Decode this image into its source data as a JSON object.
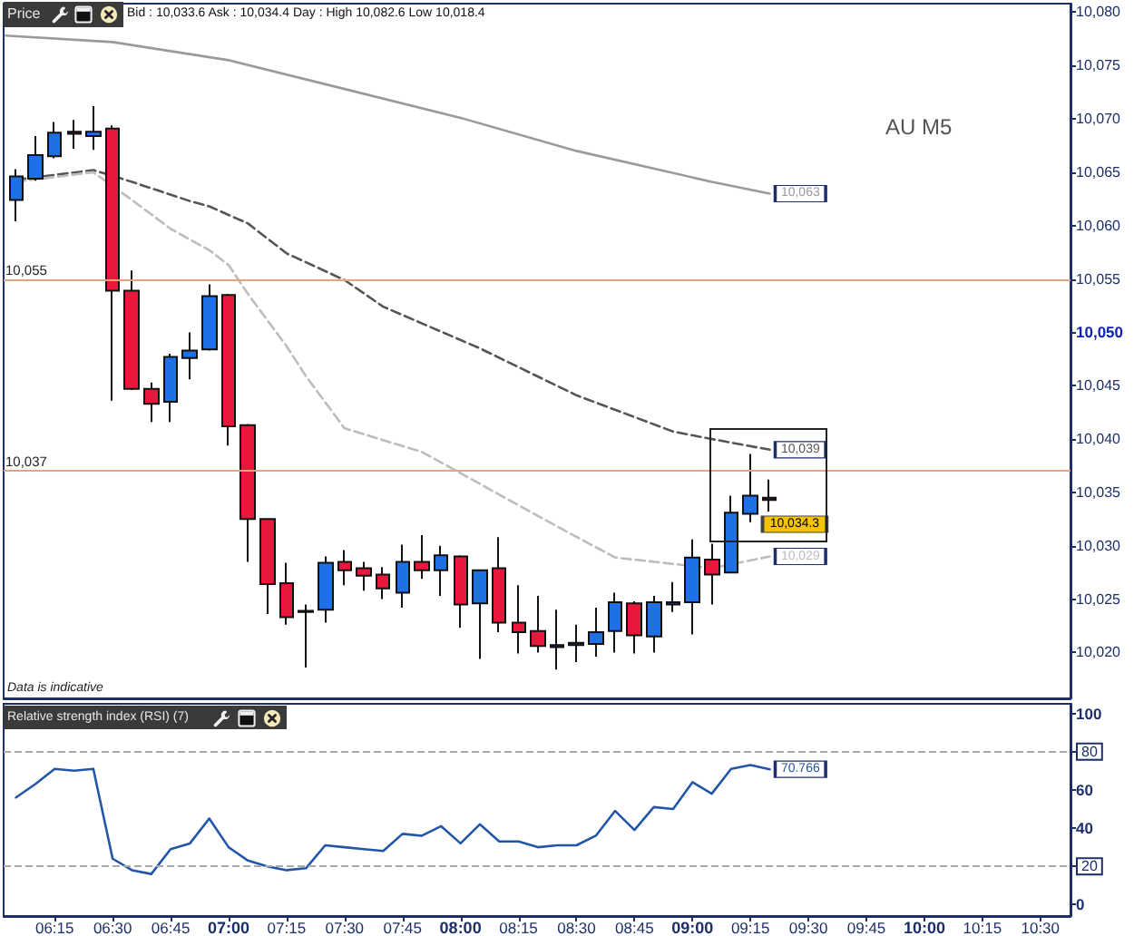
{
  "chart_data": [
    {
      "type": "candlestick",
      "title": "Price",
      "subtitle": "Bid : 10,033.6 Ask : 10,034.4 Day : High 10,082.6 Low 10,018.4",
      "annotations": [
        "AU M5",
        "Data is indicative"
      ],
      "x": [
        6.0833,
        6.1667,
        6.25,
        6.3333,
        6.4167,
        6.5,
        6.5833,
        6.6667,
        6.75,
        6.8333,
        6.9167,
        7,
        7.0833,
        7.1667,
        7.25,
        7.3333,
        7.4167,
        7.5,
        7.5833,
        7.6667,
        7.75,
        7.8333,
        7.9167,
        8,
        8.0833,
        8.1667,
        8.25,
        8.3333,
        8.4167,
        8.5,
        8.5833,
        8.6667,
        8.75,
        8.8333,
        8.9167,
        9,
        9.0833,
        9.1667,
        9.25,
        9.3333
      ],
      "ohlc": [
        [
          10062.4,
          10065.3,
          10060.4,
          10064.6
        ],
        [
          10064.4,
          10068.4,
          10064.2,
          10066.6
        ],
        [
          10066.5,
          10069.7,
          10066.3,
          10068.7
        ],
        [
          10068.8,
          10069.9,
          10067.2,
          10068.6
        ],
        [
          10068.4,
          10071.2,
          10067.1,
          10068.8
        ],
        [
          10069.1,
          10069.4,
          10043.6,
          10053.9
        ],
        [
          10053.9,
          10055.8,
          10044.6,
          10044.7
        ],
        [
          10044.7,
          10045.3,
          10041.6,
          10043.3
        ],
        [
          10043.5,
          10048.0,
          10041.6,
          10047.7
        ],
        [
          10047.6,
          10050.0,
          10045.6,
          10048.3
        ],
        [
          10048.4,
          10054.5,
          10048.3,
          10053.4
        ],
        [
          10053.5,
          10053.6,
          10039.4,
          10041.2
        ],
        [
          10041.3,
          10041.4,
          10028.5,
          10032.5
        ],
        [
          10032.5,
          10032.6,
          10023.6,
          10026.4
        ],
        [
          10026.5,
          10028.4,
          10022.6,
          10023.3
        ],
        [
          10023.8,
          10024.5,
          10018.6,
          10023.9
        ],
        [
          10024.0,
          10029.0,
          10022.8,
          10028.4
        ],
        [
          10028.5,
          10029.6,
          10026.3,
          10027.7
        ],
        [
          10027.9,
          10028.5,
          10025.8,
          10027.2
        ],
        [
          10027.3,
          10028.0,
          10025.0,
          10026.0
        ],
        [
          10025.6,
          10030.1,
          10024.2,
          10028.5
        ],
        [
          10028.5,
          10031.0,
          10026.9,
          10027.7
        ],
        [
          10027.7,
          10030.0,
          10025.3,
          10029.1
        ],
        [
          10029.0,
          10029.1,
          10022.3,
          10024.5
        ],
        [
          10024.6,
          10027.8,
          10019.4,
          10027.7
        ],
        [
          10027.9,
          10030.8,
          10021.9,
          10022.8
        ],
        [
          10022.8,
          10026.3,
          10019.9,
          10021.9
        ],
        [
          10022.0,
          10025.3,
          10020.0,
          10020.6
        ],
        [
          10020.5,
          10024.0,
          10018.4,
          10020.7
        ],
        [
          10020.7,
          10022.6,
          10019.1,
          10020.9
        ],
        [
          10020.8,
          10024.2,
          10019.6,
          10021.9
        ],
        [
          10022.0,
          10025.6,
          10020.0,
          10024.7
        ],
        [
          10024.6,
          10024.8,
          10019.9,
          10021.6
        ],
        [
          10021.5,
          10025.3,
          10020.0,
          10024.7
        ],
        [
          10024.5,
          10026.6,
          10023.8,
          10024.7
        ],
        [
          10024.7,
          10030.6,
          10021.7,
          10028.9
        ],
        [
          10028.7,
          10030.2,
          10024.5,
          10027.3
        ],
        [
          10027.5,
          10034.7,
          10027.4,
          10033.1
        ],
        [
          10033.0,
          10038.6,
          10032.2,
          10034.7
        ],
        [
          10034.5,
          10036.2,
          10033.2,
          10034.3
        ]
      ],
      "colors": [
        "#1f6fe5",
        "#1f6fe5",
        "#1f6fe5",
        "#7a1a2a",
        "#1f6fe5",
        "#e8183c",
        "#e8183c",
        "#e8183c",
        "#1f6fe5",
        "#1f6fe5",
        "#1f6fe5",
        "#e8183c",
        "#e8183c",
        "#e8183c",
        "#e8183c",
        "#1f3f8f",
        "#1f6fe5",
        "#e8183c",
        "#e8183c",
        "#e8183c",
        "#1f6fe5",
        "#e8183c",
        "#1f6fe5",
        "#e8183c",
        "#1f6fe5",
        "#e8183c",
        "#e8183c",
        "#e8183c",
        "#1f3f8f",
        "#1f3f8f",
        "#1f6fe5",
        "#1f6fe5",
        "#e8183c",
        "#1f6fe5",
        "#1f3f8f",
        "#1f6fe5",
        "#e8183c",
        "#1f6fe5",
        "#1f6fe5",
        "#7a1a2a"
      ],
      "value_labels": [
        null,
        null,
        null,
        null,
        null,
        null,
        null,
        null,
        null,
        null,
        null,
        null,
        null,
        null,
        null,
        null,
        null,
        null,
        null,
        null,
        null,
        null,
        null,
        null,
        null,
        null,
        null,
        null,
        null,
        null,
        null,
        null,
        null,
        null,
        null,
        null,
        null,
        null,
        null,
        "10,034.3"
      ],
      "series": [
        {
          "type": "line",
          "color": "#9a9a9a",
          "line_style": "solid",
          "x": [
            6.04,
            6.5,
            7,
            7.5,
            8,
            8.5,
            9.0833,
            9.3333
          ],
          "values": [
            10077.8,
            10077.2,
            10075.5,
            10072.8,
            10070.1,
            10067.0,
            10064.1,
            10063
          ],
          "value_labels": [
            null,
            null,
            null,
            null,
            null,
            null,
            null,
            "10,063"
          ]
        },
        {
          "type": "line",
          "color": "#555555",
          "line_style": "dashed",
          "x": [
            6.0833,
            6.4167,
            6.5833,
            6.8333,
            6.9167,
            7.0833,
            7.25,
            7.5,
            7.6667,
            8.0833,
            8.5,
            8.9167,
            9.0833,
            9.3333
          ],
          "values": [
            10064.3,
            10065.2,
            10064.1,
            10062.3,
            10061.8,
            10060.2,
            10057.4,
            10054.9,
            10052.4,
            10048.5,
            10044.1,
            10040.7,
            10040.0,
            10039
          ],
          "value_labels": [
            null,
            null,
            null,
            null,
            null,
            null,
            null,
            null,
            null,
            null,
            null,
            null,
            null,
            "10,039"
          ]
        },
        {
          "type": "line",
          "color": "#bdbdbd",
          "line_style": "dashed",
          "x": [
            6.0833,
            6.4167,
            6.5833,
            6.75,
            6.9167,
            7,
            7.0833,
            7.25,
            7.3333,
            7.5,
            7.8333,
            8.4167,
            8.6667,
            9.0833,
            9.3333
          ],
          "values": [
            10064.1,
            10065.0,
            10062.4,
            10059.7,
            10057.7,
            10056.3,
            10053.6,
            10048.7,
            10045.9,
            10041.0,
            10038.8,
            10031.8,
            10028.9,
            10027.9,
            10029
          ],
          "value_labels": [
            null,
            null,
            null,
            null,
            null,
            null,
            null,
            null,
            null,
            null,
            null,
            null,
            null,
            null,
            "10,029"
          ]
        }
      ],
      "xlim": [
        6.03,
        10.63
      ],
      "ylim": [
        10015.7,
        10080.8
      ],
      "yticks": [
        {
          "value": 10020,
          "label": "10,020"
        },
        {
          "value": 10025,
          "label": "10,025"
        },
        {
          "value": 10030,
          "label": "10,030"
        },
        {
          "value": 10035,
          "label": "10,035"
        },
        {
          "value": 10040,
          "label": "10,040"
        },
        {
          "value": 10045,
          "label": "10,045"
        },
        {
          "value": 10050,
          "label": "10,050"
        },
        {
          "value": 10055,
          "label": "10,055"
        },
        {
          "value": 10060,
          "label": "10,060"
        },
        {
          "value": 10065,
          "label": "10,065"
        },
        {
          "value": 10070,
          "label": "10,070"
        },
        {
          "value": 10075,
          "label": "10,075"
        },
        {
          "value": 10080,
          "label": "10,080"
        }
      ],
      "ref_lines": [
        {
          "axis": "y",
          "value": 10055,
          "label": "10,055",
          "color": "#e2a67f"
        },
        {
          "axis": "y",
          "value": 10037,
          "label": "10,037",
          "color": "#e2a67f"
        }
      ],
      "tick_labels": "y",
      "marker": "none"
    },
    {
      "type": "line",
      "title": "Relative strength index (RSI) (7)",
      "x": [
        6.0833,
        6.1667,
        6.25,
        6.3333,
        6.4167,
        6.5,
        6.5833,
        6.6667,
        6.75,
        6.8333,
        6.9167,
        7,
        7.0833,
        7.1667,
        7.25,
        7.3333,
        7.4167,
        7.5,
        7.5833,
        7.6667,
        7.75,
        7.8333,
        7.9167,
        8,
        8.0833,
        8.1667,
        8.25,
        8.3333,
        8.4167,
        8.5,
        8.5833,
        8.6667,
        8.75,
        8.8333,
        8.9167,
        9,
        9.0833,
        9.1667,
        9.25,
        9.3333
      ],
      "series": [
        {
          "color": "#2456a8",
          "values": [
            56,
            63,
            71,
            70,
            71,
            24,
            18,
            16,
            29,
            32,
            45,
            30,
            23,
            20,
            18,
            19,
            31,
            30,
            29,
            28,
            37,
            36,
            41,
            32,
            42,
            33,
            33,
            30,
            31,
            31,
            36,
            49,
            39,
            51,
            50,
            64,
            58,
            71,
            73,
            70.766
          ],
          "value_labels": [
            null,
            null,
            null,
            null,
            null,
            null,
            null,
            null,
            null,
            null,
            null,
            null,
            null,
            null,
            null,
            null,
            null,
            null,
            null,
            null,
            null,
            null,
            null,
            null,
            null,
            null,
            null,
            null,
            null,
            null,
            null,
            null,
            null,
            null,
            null,
            null,
            null,
            null,
            null,
            "70.766"
          ]
        }
      ],
      "xlim": [
        6.03,
        10.63
      ],
      "xticks": [
        {
          "value": 6.25,
          "label": "06:15"
        },
        {
          "value": 6.5,
          "label": "06:30"
        },
        {
          "value": 6.75,
          "label": "06:45"
        },
        {
          "value": 7,
          "label": "07:00"
        },
        {
          "value": 7.25,
          "label": "07:15"
        },
        {
          "value": 7.5,
          "label": "07:30"
        },
        {
          "value": 7.75,
          "label": "07:45"
        },
        {
          "value": 8,
          "label": "08:00"
        },
        {
          "value": 8.25,
          "label": "08:15"
        },
        {
          "value": 8.5,
          "label": "08:30"
        },
        {
          "value": 8.75,
          "label": "08:45"
        },
        {
          "value": 9,
          "label": "09:00"
        },
        {
          "value": 9.25,
          "label": "09:15"
        },
        {
          "value": 9.5,
          "label": "09:30"
        },
        {
          "value": 9.75,
          "label": "09:45"
        },
        {
          "value": 10,
          "label": "10:00"
        },
        {
          "value": 10.25,
          "label": "10:15"
        },
        {
          "value": 10.5,
          "label": "10:30"
        }
      ],
      "ylim": [
        -6,
        105
      ],
      "yticks": [
        0,
        {
          "value": 20,
          "label": null
        },
        40,
        60,
        {
          "value": 80,
          "label": null
        },
        100
      ],
      "ref_lines": [
        {
          "axis": "y",
          "value": 80,
          "label": "80",
          "color": "#aaaaaa",
          "line_style": "dashed"
        },
        {
          "axis": "y",
          "value": 20,
          "label": "20",
          "color": "#aaaaaa",
          "line_style": "dashed"
        }
      ],
      "marker": "none"
    }
  ]
}
